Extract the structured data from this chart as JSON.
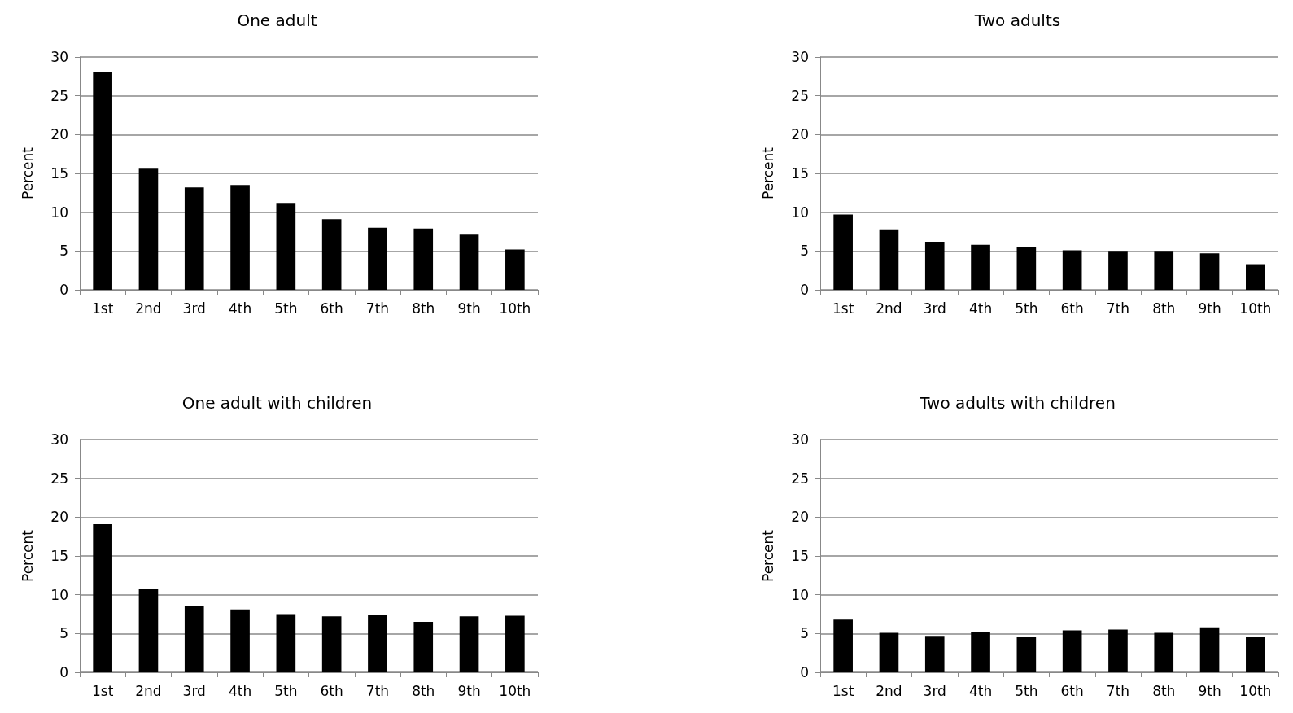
{
  "chart_data": [
    {
      "type": "bar",
      "title": "One adult",
      "ylabel": "Percent",
      "categories": [
        "1st",
        "2nd",
        "3rd",
        "4th",
        "5th",
        "6th",
        "7th",
        "8th",
        "9th",
        "10th"
      ],
      "values": [
        28.0,
        15.6,
        13.2,
        13.5,
        11.1,
        9.1,
        8.0,
        7.9,
        7.1,
        5.2
      ],
      "color": "#000000",
      "ylim": [
        0,
        30
      ],
      "yticks": [
        0,
        5,
        10,
        15,
        20,
        25,
        30
      ],
      "grid": "y"
    },
    {
      "type": "bar",
      "title": "Two adults",
      "ylabel": "Percent",
      "categories": [
        "1st",
        "2nd",
        "3rd",
        "4th",
        "5th",
        "6th",
        "7th",
        "8th",
        "9th",
        "10th"
      ],
      "values": [
        9.7,
        7.8,
        6.2,
        5.8,
        5.5,
        5.1,
        5.0,
        5.0,
        4.7,
        3.3
      ],
      "color": "#000000",
      "ylim": [
        0,
        30
      ],
      "yticks": [
        0,
        5,
        10,
        15,
        20,
        25,
        30
      ],
      "grid": "y"
    },
    {
      "type": "bar",
      "title": "One adult with children",
      "ylabel": "Percent",
      "categories": [
        "1st",
        "2nd",
        "3rd",
        "4th",
        "5th",
        "6th",
        "7th",
        "8th",
        "9th",
        "10th"
      ],
      "values": [
        19.1,
        10.7,
        8.5,
        8.1,
        7.5,
        7.2,
        7.4,
        6.5,
        7.2,
        7.3
      ],
      "color": "#000000",
      "ylim": [
        0,
        30
      ],
      "yticks": [
        0,
        5,
        10,
        15,
        20,
        25,
        30
      ],
      "grid": "y"
    },
    {
      "type": "bar",
      "title": "Two adults with children",
      "ylabel": "Percent",
      "categories": [
        "1st",
        "2nd",
        "3rd",
        "4th",
        "5th",
        "6th",
        "7th",
        "8th",
        "9th",
        "10th"
      ],
      "values": [
        6.8,
        5.1,
        4.6,
        5.2,
        4.5,
        5.4,
        5.5,
        5.1,
        5.8,
        4.5
      ],
      "color": "#000000",
      "ylim": [
        0,
        30
      ],
      "yticks": [
        0,
        5,
        10,
        15,
        20,
        25,
        30
      ],
      "grid": "y"
    }
  ]
}
